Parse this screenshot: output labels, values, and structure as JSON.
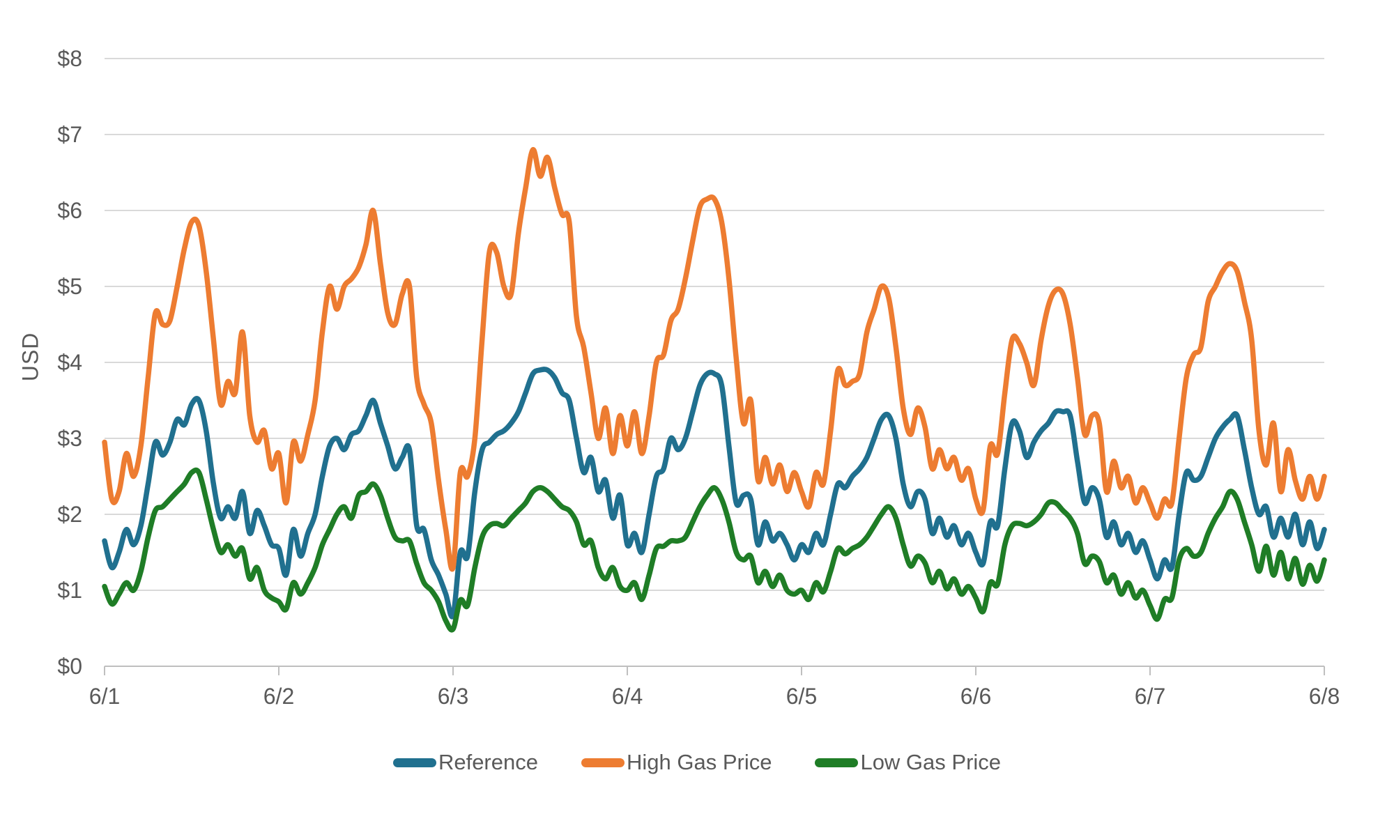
{
  "chart_data": {
    "type": "line",
    "title": "",
    "xlabel": "",
    "ylabel": "USD",
    "ylim": [
      0,
      8
    ],
    "y_tick_labels": [
      "$0",
      "$1",
      "$2",
      "$3",
      "$4",
      "$5",
      "$6",
      "$7",
      "$8"
    ],
    "x_tick_labels": [
      "6/1",
      "6/2",
      "6/3",
      "6/4",
      "6/5",
      "6/6",
      "6/7",
      "6/8"
    ],
    "x_description": "hourly values from 6/1 00:00 through 6/8 00:00",
    "grid": "horizontal",
    "legend_position": "bottom",
    "axis_color": "#BFBFBF",
    "gridline_color": "#D9D9D9",
    "text_color": "#595959",
    "series": [
      {
        "name": "Reference",
        "color": "#20708F",
        "values": [
          1.65,
          1.3,
          1.5,
          1.8,
          1.6,
          1.85,
          2.4,
          2.95,
          2.78,
          2.95,
          3.25,
          3.18,
          3.45,
          3.5,
          3.1,
          2.4,
          1.95,
          2.1,
          1.95,
          2.3,
          1.75,
          2.05,
          1.85,
          1.6,
          1.55,
          1.2,
          1.8,
          1.45,
          1.75,
          2.0,
          2.5,
          2.9,
          3.0,
          2.85,
          3.05,
          3.1,
          3.3,
          3.5,
          3.2,
          2.9,
          2.6,
          2.75,
          2.85,
          1.85,
          1.8,
          1.4,
          1.2,
          0.95,
          0.67,
          1.5,
          1.45,
          2.3,
          2.85,
          2.95,
          3.05,
          3.1,
          3.2,
          3.35,
          3.6,
          3.85,
          3.9,
          3.9,
          3.8,
          3.6,
          3.5,
          3.0,
          2.55,
          2.75,
          2.3,
          2.45,
          1.95,
          2.25,
          1.6,
          1.75,
          1.5,
          2.0,
          2.5,
          2.6,
          3.0,
          2.85,
          3.0,
          3.35,
          3.7,
          3.85,
          3.85,
          3.7,
          2.9,
          2.15,
          2.25,
          2.2,
          1.6,
          1.9,
          1.65,
          1.75,
          1.6,
          1.4,
          1.6,
          1.5,
          1.75,
          1.6,
          2.0,
          2.4,
          2.35,
          2.5,
          2.6,
          2.75,
          3.0,
          3.25,
          3.3,
          3.0,
          2.4,
          2.1,
          2.3,
          2.2,
          1.75,
          1.95,
          1.7,
          1.85,
          1.6,
          1.75,
          1.5,
          1.35,
          1.9,
          1.85,
          2.6,
          3.2,
          3.1,
          2.75,
          2.95,
          3.1,
          3.2,
          3.35,
          3.35,
          3.3,
          2.7,
          2.15,
          2.35,
          2.2,
          1.7,
          1.9,
          1.6,
          1.75,
          1.5,
          1.65,
          1.4,
          1.15,
          1.4,
          1.3,
          2.0,
          2.55,
          2.45,
          2.5,
          2.75,
          3.0,
          3.15,
          3.25,
          3.3,
          2.85,
          2.35,
          2.0,
          2.1,
          1.7,
          1.95,
          1.7,
          2.0,
          1.6,
          1.9,
          1.55,
          1.8
        ]
      },
      {
        "name": "High Gas Price",
        "color": "#ED7C31",
        "values": [
          2.95,
          2.2,
          2.3,
          2.8,
          2.5,
          2.9,
          3.8,
          4.65,
          4.5,
          4.55,
          5.0,
          5.5,
          5.85,
          5.8,
          5.2,
          4.3,
          3.45,
          3.75,
          3.6,
          4.4,
          3.3,
          2.95,
          3.1,
          2.6,
          2.8,
          2.15,
          2.95,
          2.7,
          3.05,
          3.5,
          4.4,
          5.0,
          4.7,
          5.0,
          5.1,
          5.25,
          5.55,
          6.0,
          5.3,
          4.65,
          4.5,
          4.9,
          5.0,
          3.8,
          3.45,
          3.2,
          2.45,
          1.8,
          1.3,
          2.55,
          2.5,
          3.0,
          4.3,
          5.45,
          5.45,
          5.0,
          4.9,
          5.7,
          6.3,
          6.8,
          6.45,
          6.7,
          6.3,
          5.95,
          5.85,
          4.6,
          4.2,
          3.6,
          3.0,
          3.4,
          2.8,
          3.3,
          2.9,
          3.35,
          2.8,
          3.3,
          4.0,
          4.1,
          4.55,
          4.7,
          5.1,
          5.6,
          6.05,
          6.15,
          6.15,
          5.85,
          5.1,
          4.05,
          3.2,
          3.5,
          2.45,
          2.75,
          2.4,
          2.65,
          2.3,
          2.55,
          2.3,
          2.1,
          2.55,
          2.4,
          3.1,
          3.9,
          3.7,
          3.75,
          3.85,
          4.4,
          4.7,
          5.0,
          4.85,
          4.2,
          3.4,
          3.05,
          3.4,
          3.15,
          2.6,
          2.85,
          2.6,
          2.75,
          2.45,
          2.6,
          2.2,
          2.05,
          2.9,
          2.8,
          3.6,
          4.3,
          4.25,
          4.0,
          3.7,
          4.3,
          4.75,
          4.95,
          4.9,
          4.5,
          3.8,
          3.05,
          3.3,
          3.2,
          2.3,
          2.7,
          2.35,
          2.5,
          2.15,
          2.35,
          2.15,
          1.95,
          2.2,
          2.15,
          3.0,
          3.8,
          4.1,
          4.2,
          4.8,
          5.0,
          5.2,
          5.3,
          5.2,
          4.8,
          4.3,
          3.1,
          2.65,
          3.2,
          2.3,
          2.85,
          2.45,
          2.2,
          2.5,
          2.2,
          2.5
        ]
      },
      {
        "name": "Low Gas Price",
        "color": "#1F7D26",
        "values": [
          1.05,
          0.82,
          0.95,
          1.1,
          1.0,
          1.25,
          1.7,
          2.05,
          2.1,
          2.2,
          2.3,
          2.4,
          2.55,
          2.55,
          2.2,
          1.8,
          1.5,
          1.6,
          1.45,
          1.55,
          1.15,
          1.3,
          1.0,
          0.9,
          0.85,
          0.75,
          1.1,
          0.95,
          1.1,
          1.3,
          1.6,
          1.8,
          2.0,
          2.1,
          1.95,
          2.25,
          2.3,
          2.4,
          2.25,
          1.95,
          1.7,
          1.65,
          1.65,
          1.35,
          1.1,
          1.0,
          0.85,
          0.6,
          0.49,
          0.87,
          0.8,
          1.3,
          1.7,
          1.85,
          1.88,
          1.85,
          1.95,
          2.05,
          2.15,
          2.3,
          2.35,
          2.3,
          2.2,
          2.1,
          2.05,
          1.9,
          1.6,
          1.65,
          1.3,
          1.15,
          1.3,
          1.05,
          1.0,
          1.1,
          0.88,
          1.2,
          1.55,
          1.58,
          1.65,
          1.65,
          1.7,
          1.9,
          2.1,
          2.25,
          2.35,
          2.2,
          1.9,
          1.5,
          1.4,
          1.45,
          1.1,
          1.25,
          1.05,
          1.2,
          1.0,
          0.95,
          1.0,
          0.88,
          1.1,
          0.98,
          1.25,
          1.55,
          1.48,
          1.55,
          1.6,
          1.7,
          1.85,
          2.0,
          2.1,
          1.95,
          1.6,
          1.32,
          1.45,
          1.36,
          1.1,
          1.25,
          1.02,
          1.15,
          0.95,
          1.05,
          0.9,
          0.72,
          1.1,
          1.08,
          1.6,
          1.85,
          1.88,
          1.85,
          1.9,
          2.0,
          2.15,
          2.15,
          2.05,
          1.95,
          1.75,
          1.35,
          1.45,
          1.38,
          1.1,
          1.2,
          0.95,
          1.1,
          0.9,
          1.0,
          0.8,
          0.62,
          0.88,
          0.9,
          1.4,
          1.55,
          1.45,
          1.5,
          1.75,
          1.95,
          2.1,
          2.3,
          2.2,
          1.9,
          1.6,
          1.25,
          1.58,
          1.2,
          1.5,
          1.15,
          1.42,
          1.08,
          1.33,
          1.12,
          1.4
        ]
      }
    ]
  }
}
